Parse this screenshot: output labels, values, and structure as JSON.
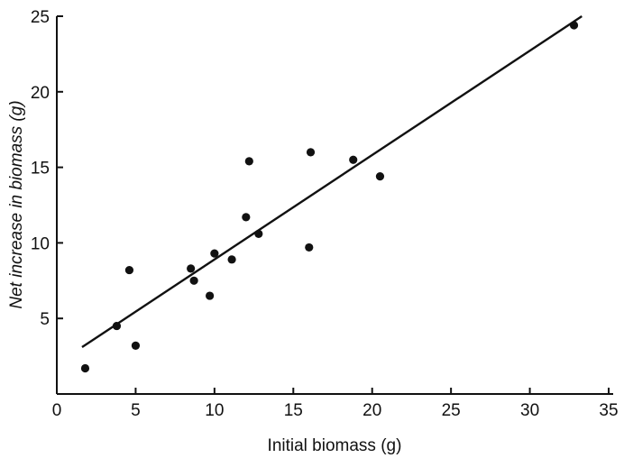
{
  "chart_data": {
    "type": "scatter",
    "title": "",
    "xlabel": "Initial biomass (g)",
    "ylabel": "Net increase in biomass (g)",
    "xlim": [
      0,
      35
    ],
    "ylim": [
      0,
      25
    ],
    "xticks": [
      0,
      5,
      10,
      15,
      20,
      25,
      30,
      35
    ],
    "yticks": [
      5,
      10,
      15,
      20,
      25
    ],
    "grid": false,
    "series": [
      {
        "points": [
          [
            1.8,
            1.7
          ],
          [
            3.8,
            4.5
          ],
          [
            4.6,
            8.2
          ],
          [
            5.0,
            3.2
          ],
          [
            8.5,
            8.3
          ],
          [
            8.7,
            7.5
          ],
          [
            9.7,
            6.5
          ],
          [
            10.0,
            9.3
          ],
          [
            11.1,
            8.9
          ],
          [
            12.0,
            11.7
          ],
          [
            12.2,
            15.4
          ],
          [
            12.8,
            10.6
          ],
          [
            16.0,
            9.7
          ],
          [
            16.1,
            16.0
          ],
          [
            18.8,
            15.5
          ],
          [
            20.5,
            14.4
          ],
          [
            32.8,
            24.4
          ]
        ]
      }
    ],
    "fit_line": {
      "x": [
        1.6,
        33.3
      ],
      "y": [
        3.1,
        25.0
      ]
    }
  }
}
